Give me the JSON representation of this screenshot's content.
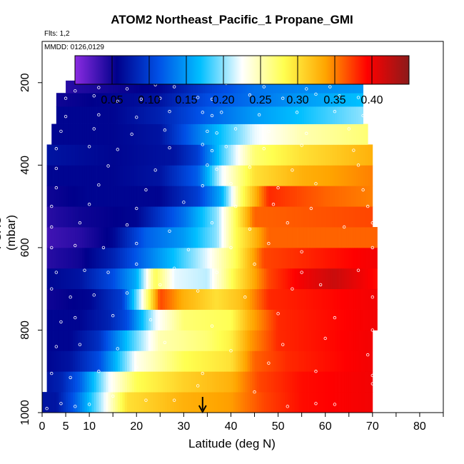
{
  "chart_data": {
    "type": "heatmap",
    "title": "ATOM2 Northeast_Pacific_1 Propane_GMI",
    "annotations": [
      "Flts: 1,2",
      "MMDD: 0126,0129"
    ],
    "xlabel": "Latitude (deg N)",
    "ylabel": "PSXC (mbar)",
    "xlim": [
      0,
      85
    ],
    "ylim": [
      1000,
      100
    ],
    "x_ticks": [
      0,
      5,
      10,
      20,
      30,
      40,
      50,
      60,
      70,
      80
    ],
    "y_ticks": [
      200,
      400,
      600,
      800,
      1000
    ],
    "colorbar": {
      "ticks": [
        0.05,
        0.1,
        0.15,
        0.2,
        0.25,
        0.3,
        0.35,
        0.4
      ],
      "tick_labels": [
        "0.05",
        "0.10",
        "0.15",
        "0.20",
        "0.25",
        "0.30",
        "0.35",
        "0.40"
      ],
      "range": [
        0,
        0.45
      ],
      "colors": [
        "#8b2be2",
        "#00008b",
        "#0050e6",
        "#00bfff",
        "#ffffff",
        "#ffff50",
        "#ffa500",
        "#ff0000",
        "#8b1a1a"
      ]
    },
    "arrow_marker": {
      "latitude": 34
    },
    "rows": [
      {
        "pressure": 975,
        "lat_start": 0,
        "lat_end": 70,
        "profile": [
          [
            0,
            0.07
          ],
          [
            3,
            0.07
          ],
          [
            7,
            0.12
          ],
          [
            12,
            0.2
          ],
          [
            18,
            0.3
          ],
          [
            30,
            0.33
          ],
          [
            40,
            0.34
          ],
          [
            47,
            0.37
          ],
          [
            55,
            0.39
          ],
          [
            70,
            0.4
          ]
        ]
      },
      {
        "pressure": 925,
        "lat_start": 1,
        "lat_end": 70,
        "profile": [
          [
            1,
            0.07
          ],
          [
            4,
            0.08
          ],
          [
            8,
            0.12
          ],
          [
            14,
            0.22
          ],
          [
            20,
            0.28
          ],
          [
            30,
            0.31
          ],
          [
            40,
            0.33
          ],
          [
            46,
            0.37
          ],
          [
            55,
            0.39
          ],
          [
            70,
            0.4
          ]
        ]
      },
      {
        "pressure": 875,
        "lat_start": 1,
        "lat_end": 70,
        "profile": [
          [
            1,
            0.06
          ],
          [
            6,
            0.07
          ],
          [
            12,
            0.11
          ],
          [
            16,
            0.17
          ],
          [
            20,
            0.23
          ],
          [
            30,
            0.28
          ],
          [
            40,
            0.3
          ],
          [
            45,
            0.36
          ],
          [
            52,
            0.38
          ],
          [
            70,
            0.4
          ]
        ]
      },
      {
        "pressure": 825,
        "lat_start": 1,
        "lat_end": 70,
        "profile": [
          [
            1,
            0.06
          ],
          [
            6,
            0.06
          ],
          [
            12,
            0.09
          ],
          [
            18,
            0.17
          ],
          [
            25,
            0.25
          ],
          [
            35,
            0.27
          ],
          [
            40,
            0.29
          ],
          [
            44,
            0.34
          ],
          [
            50,
            0.38
          ],
          [
            70,
            0.4
          ]
        ]
      },
      {
        "pressure": 775,
        "lat_start": 1,
        "lat_end": 71,
        "profile": [
          [
            1,
            0.06
          ],
          [
            8,
            0.06
          ],
          [
            14,
            0.08
          ],
          [
            18,
            0.11
          ],
          [
            24,
            0.22
          ],
          [
            30,
            0.27
          ],
          [
            40,
            0.28
          ],
          [
            44,
            0.33
          ],
          [
            50,
            0.38
          ],
          [
            71,
            0.4
          ]
        ]
      },
      {
        "pressure": 725,
        "lat_start": 1,
        "lat_end": 71,
        "profile": [
          [
            1,
            0.05
          ],
          [
            10,
            0.06
          ],
          [
            17,
            0.1
          ],
          [
            21,
            0.22
          ],
          [
            25,
            0.37
          ],
          [
            30,
            0.33
          ],
          [
            37,
            0.3
          ],
          [
            42,
            0.32
          ],
          [
            48,
            0.38
          ],
          [
            71,
            0.4
          ]
        ]
      },
      {
        "pressure": 675,
        "lat_start": 1,
        "lat_end": 71,
        "profile": [
          [
            1,
            0.06
          ],
          [
            8,
            0.07
          ],
          [
            15,
            0.11
          ],
          [
            20,
            0.16
          ],
          [
            24,
            0.28
          ],
          [
            28,
            0.22
          ],
          [
            35,
            0.21
          ],
          [
            41,
            0.29
          ],
          [
            48,
            0.37
          ],
          [
            55,
            0.4
          ],
          [
            62,
            0.42
          ],
          [
            71,
            0.39
          ]
        ]
      },
      {
        "pressure": 625,
        "lat_start": 1,
        "lat_end": 71,
        "profile": [
          [
            1,
            0.04
          ],
          [
            8,
            0.05
          ],
          [
            15,
            0.08
          ],
          [
            22,
            0.13
          ],
          [
            28,
            0.17
          ],
          [
            35,
            0.22
          ],
          [
            41,
            0.28
          ],
          [
            47,
            0.37
          ],
          [
            71,
            0.4
          ]
        ]
      },
      {
        "pressure": 575,
        "lat_start": 1,
        "lat_end": 71,
        "profile": [
          [
            1,
            0.03
          ],
          [
            8,
            0.04
          ],
          [
            15,
            0.06
          ],
          [
            22,
            0.12
          ],
          [
            30,
            0.15
          ],
          [
            37,
            0.2
          ],
          [
            41,
            0.28
          ],
          [
            48,
            0.36
          ],
          [
            71,
            0.36
          ]
        ]
      },
      {
        "pressure": 525,
        "lat_start": 1,
        "lat_end": 70,
        "profile": [
          [
            1,
            0.04
          ],
          [
            8,
            0.05
          ],
          [
            20,
            0.06
          ],
          [
            30,
            0.13
          ],
          [
            37,
            0.2
          ],
          [
            41,
            0.28
          ],
          [
            45,
            0.36
          ],
          [
            70,
            0.37
          ]
        ]
      },
      {
        "pressure": 475,
        "lat_start": 1,
        "lat_end": 70,
        "profile": [
          [
            1,
            0.05
          ],
          [
            10,
            0.06
          ],
          [
            25,
            0.06
          ],
          [
            33,
            0.1
          ],
          [
            38,
            0.16
          ],
          [
            42,
            0.27
          ],
          [
            48,
            0.38
          ],
          [
            60,
            0.36
          ],
          [
            70,
            0.35
          ]
        ]
      },
      {
        "pressure": 425,
        "lat_start": 1,
        "lat_end": 70,
        "profile": [
          [
            1,
            0.06
          ],
          [
            15,
            0.06
          ],
          [
            25,
            0.07
          ],
          [
            33,
            0.12
          ],
          [
            38,
            0.22
          ],
          [
            45,
            0.3
          ],
          [
            55,
            0.33
          ],
          [
            70,
            0.35
          ]
        ]
      },
      {
        "pressure": 375,
        "lat_start": 1,
        "lat_end": 70,
        "profile": [
          [
            1,
            0.07
          ],
          [
            15,
            0.06
          ],
          [
            28,
            0.07
          ],
          [
            33,
            0.1
          ],
          [
            38,
            0.18
          ],
          [
            45,
            0.27
          ],
          [
            55,
            0.3
          ],
          [
            70,
            0.33
          ]
        ]
      },
      {
        "pressure": 325,
        "lat_start": 2,
        "lat_end": 69,
        "profile": [
          [
            2,
            0.06
          ],
          [
            15,
            0.06
          ],
          [
            25,
            0.07
          ],
          [
            35,
            0.15
          ],
          [
            45,
            0.22
          ],
          [
            55,
            0.25
          ],
          [
            69,
            0.27
          ]
        ]
      },
      {
        "pressure": 275,
        "lat_start": 3,
        "lat_end": 68,
        "profile": [
          [
            3,
            0.06
          ],
          [
            15,
            0.06
          ],
          [
            25,
            0.08
          ],
          [
            35,
            0.12
          ],
          [
            45,
            0.15
          ],
          [
            55,
            0.17
          ],
          [
            68,
            0.2
          ]
        ]
      },
      {
        "pressure": 240,
        "lat_start": 3,
        "lat_end": 68,
        "profile": [
          [
            3,
            0.05
          ],
          [
            15,
            0.06
          ],
          [
            25,
            0.07
          ],
          [
            35,
            0.11
          ],
          [
            45,
            0.13
          ],
          [
            55,
            0.15
          ],
          [
            68,
            0.17
          ]
        ]
      },
      {
        "pressure": 210,
        "lat_start": 5,
        "lat_end": 68,
        "profile": [
          [
            5,
            0.04
          ],
          [
            15,
            0.05
          ],
          [
            25,
            0.06
          ],
          [
            35,
            0.1
          ],
          [
            45,
            0.13
          ],
          [
            55,
            0.14
          ],
          [
            68,
            0.15
          ]
        ]
      },
      {
        "pressure": 180,
        "lat_start": 11,
        "lat_end": 67,
        "profile": [
          [
            11,
            0.06
          ],
          [
            25,
            0.06
          ],
          [
            40,
            0.07
          ],
          [
            55,
            0.08
          ],
          [
            67,
            0.09
          ]
        ]
      }
    ],
    "sample_points": [
      [
        1,
        990
      ],
      [
        4,
        978
      ],
      [
        7,
        985
      ],
      [
        10,
        980
      ],
      [
        15,
        960
      ],
      [
        22,
        970
      ],
      [
        28,
        970
      ],
      [
        33,
        935
      ],
      [
        45,
        950
      ],
      [
        52,
        985
      ],
      [
        58,
        978
      ],
      [
        62,
        980
      ],
      [
        70,
        930
      ],
      [
        2,
        905
      ],
      [
        6,
        915
      ],
      [
        12,
        900
      ],
      [
        20,
        890
      ],
      [
        34,
        905
      ],
      [
        48,
        880
      ],
      [
        58,
        900
      ],
      [
        70,
        910
      ],
      [
        3,
        840
      ],
      [
        8,
        835
      ],
      [
        16,
        845
      ],
      [
        26,
        830
      ],
      [
        40,
        850
      ],
      [
        51,
        835
      ],
      [
        60,
        820
      ],
      [
        69,
        860
      ],
      [
        4,
        780
      ],
      [
        7,
        770
      ],
      [
        15,
        765
      ],
      [
        23,
        775
      ],
      [
        36,
        790
      ],
      [
        50,
        760
      ],
      [
        62,
        770
      ],
      [
        70,
        800
      ],
      [
        2,
        700
      ],
      [
        6,
        720
      ],
      [
        11,
        715
      ],
      [
        18,
        710
      ],
      [
        25,
        690
      ],
      [
        33,
        705
      ],
      [
        43,
        720
      ],
      [
        53,
        700
      ],
      [
        59,
        690
      ],
      [
        70,
        720
      ],
      [
        3,
        660
      ],
      [
        9,
        655
      ],
      [
        14,
        660
      ],
      [
        20,
        640
      ],
      [
        28,
        650
      ],
      [
        37,
        660
      ],
      [
        45,
        640
      ],
      [
        55,
        660
      ],
      [
        67,
        655
      ],
      [
        2,
        600
      ],
      [
        7,
        595
      ],
      [
        13,
        600
      ],
      [
        20,
        590
      ],
      [
        31,
        605
      ],
      [
        40,
        600
      ],
      [
        48,
        590
      ],
      [
        55,
        610
      ],
      [
        70,
        600
      ],
      [
        2,
        550
      ],
      [
        8,
        540
      ],
      [
        18,
        545
      ],
      [
        27,
        560
      ],
      [
        36,
        540
      ],
      [
        44,
        555
      ],
      [
        52,
        540
      ],
      [
        64,
        550
      ],
      [
        70,
        540
      ],
      [
        2,
        500
      ],
      [
        10,
        495
      ],
      [
        20,
        505
      ],
      [
        30,
        490
      ],
      [
        41,
        500
      ],
      [
        49,
        495
      ],
      [
        57,
        505
      ],
      [
        69,
        500
      ],
      [
        3,
        455
      ],
      [
        12,
        448
      ],
      [
        22,
        460
      ],
      [
        34,
        450
      ],
      [
        40,
        445
      ],
      [
        50,
        455
      ],
      [
        58,
        445
      ],
      [
        68,
        460
      ],
      [
        3,
        408
      ],
      [
        14,
        402
      ],
      [
        24,
        412
      ],
      [
        35,
        400
      ],
      [
        37,
        410
      ],
      [
        44,
        405
      ],
      [
        53,
        412
      ],
      [
        67,
        400
      ],
      [
        3,
        360
      ],
      [
        10,
        355
      ],
      [
        16,
        362
      ],
      [
        27,
        358
      ],
      [
        34,
        350
      ],
      [
        36,
        365
      ],
      [
        39,
        355
      ],
      [
        47,
        360
      ],
      [
        55,
        352
      ],
      [
        66,
        364
      ],
      [
        4,
        318
      ],
      [
        11,
        312
      ],
      [
        19,
        325
      ],
      [
        26,
        315
      ],
      [
        35,
        318
      ],
      [
        37,
        322
      ],
      [
        41,
        312
      ],
      [
        48,
        318
      ],
      [
        56,
        323
      ],
      [
        65,
        312
      ],
      [
        5,
        282
      ],
      [
        12,
        278
      ],
      [
        20,
        284
      ],
      [
        27,
        270
      ],
      [
        34,
        272
      ],
      [
        36,
        280
      ],
      [
        38,
        272
      ],
      [
        46,
        278
      ],
      [
        54,
        272
      ],
      [
        62,
        270
      ],
      [
        68,
        280
      ],
      [
        5,
        238
      ],
      [
        11,
        232
      ],
      [
        16,
        245
      ],
      [
        21,
        240
      ],
      [
        25,
        238
      ],
      [
        33,
        236
      ],
      [
        36,
        240
      ],
      [
        44,
        230
      ],
      [
        51,
        238
      ],
      [
        58,
        228
      ],
      [
        63,
        232
      ],
      [
        67,
        236
      ],
      [
        7,
        220
      ],
      [
        12,
        212
      ],
      [
        18,
        215
      ],
      [
        24,
        205
      ],
      [
        28,
        210
      ],
      [
        39,
        202
      ],
      [
        47,
        210
      ],
      [
        56,
        215
      ],
      [
        61,
        210
      ],
      [
        66,
        200
      ],
      [
        18,
        192
      ],
      [
        23,
        180
      ],
      [
        27,
        175
      ],
      [
        31,
        178
      ],
      [
        43,
        190
      ],
      [
        62,
        192
      ]
    ]
  }
}
